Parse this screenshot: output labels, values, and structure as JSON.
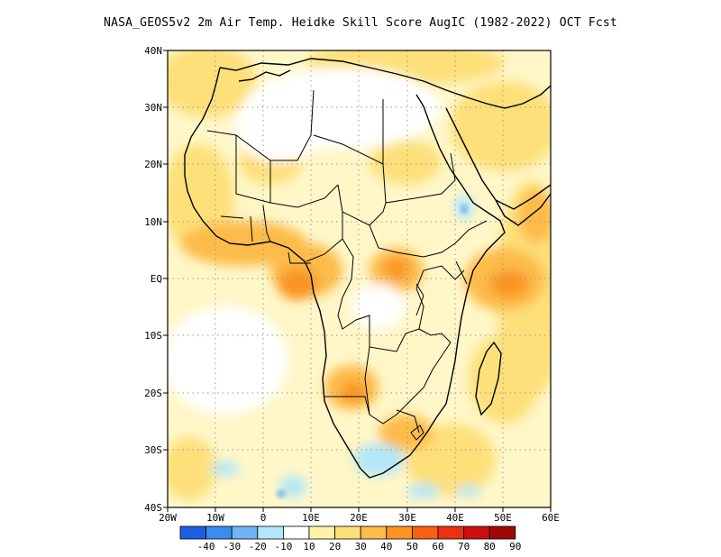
{
  "title": "NASA_GEOS5v2  2m Air Temp. Heidke Skill Score AugIC (1982-2022) OCT Fcst",
  "lat_labels": [
    "40N",
    "30N",
    "20N",
    "10N",
    "EQ",
    "10S",
    "20S",
    "30S",
    "40S"
  ],
  "lon_labels": [
    "20W",
    "10W",
    "0",
    "10E",
    "20E",
    "30E",
    "40E",
    "50E",
    "60E"
  ],
  "colorbar": {
    "labels": [
      "-40",
      "-30",
      "-20",
      "-10",
      "10",
      "20",
      "30",
      "40",
      "50",
      "60",
      "70",
      "80",
      "90"
    ],
    "colors": [
      "#1f5ee0",
      "#3a8cf0",
      "#6fb4f5",
      "#b3e6f8",
      "#ffffff",
      "#fff3a8",
      "#fde07a",
      "#fdbb4a",
      "#fb9420",
      "#f86010",
      "#ee3010",
      "#cc1010",
      "#a00808"
    ]
  }
}
